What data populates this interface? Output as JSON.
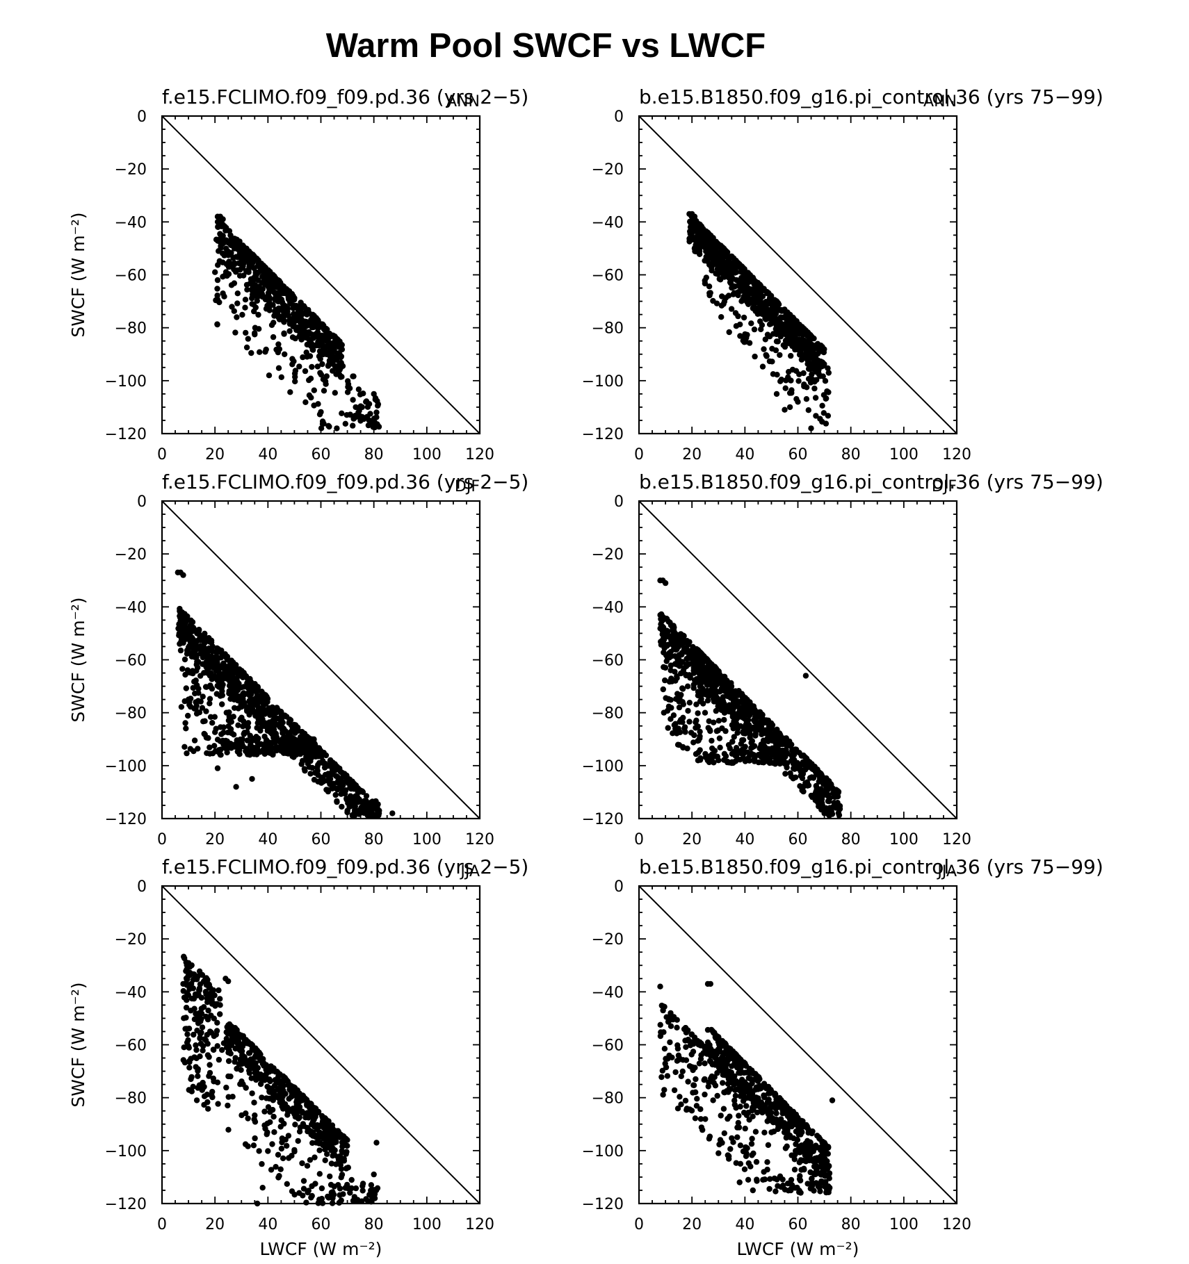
{
  "page": {
    "title": "Warm Pool SWCF vs LWCF"
  },
  "chart_data": [
    {
      "type": "scatter",
      "title": "f.e15.FCLIMO.f09_f09.pd.36 (yrs 2−5)",
      "season": "ANN",
      "xlabel": "",
      "ylabel": "SWCF (W m⁻²)",
      "xlim": [
        0,
        120
      ],
      "ylim": [
        -120,
        0
      ],
      "xticks": [
        "0",
        "20",
        "40",
        "60",
        "80",
        "100",
        "120"
      ],
      "yticks": [
        "0",
        "−20",
        "−40",
        "−60",
        "−80",
        "−100",
        "−120"
      ],
      "reference_line": "y = −x",
      "generator": {
        "seed": 11,
        "count": 750,
        "groups": [
          {
            "w": 0.7,
            "x0": 21,
            "x1": 68,
            "lo": 0,
            "hi": 14,
            "yMin": -118
          },
          {
            "w": 0.3,
            "x0": 20,
            "x1": 82,
            "lo": 8,
            "hi": 40,
            "yMin": -118
          }
        ]
      },
      "extra_points": [
        [
          21,
          -38
        ],
        [
          22,
          -38
        ],
        [
          23,
          -39
        ],
        [
          20,
          -59
        ],
        [
          21,
          -62
        ],
        [
          23,
          -67
        ],
        [
          80,
          -105
        ],
        [
          81,
          -112
        ],
        [
          77,
          -108
        ],
        [
          66,
          -118
        ],
        [
          72,
          -117
        ]
      ]
    },
    {
      "type": "scatter",
      "title": "b.e15.B1850.f09_g16.pi_control.36 (yrs 75−99)",
      "season": "ANN",
      "xlabel": "",
      "ylabel": "",
      "xlim": [
        0,
        120
      ],
      "ylim": [
        -120,
        0
      ],
      "xticks": [
        "0",
        "20",
        "40",
        "60",
        "80",
        "100",
        "120"
      ],
      "yticks": [
        "0",
        "−20",
        "−40",
        "−60",
        "−80",
        "−100",
        "−120"
      ],
      "reference_line": "y = −x",
      "generator": {
        "seed": 23,
        "count": 900,
        "groups": [
          {
            "w": 0.78,
            "x0": 19,
            "x1": 70,
            "lo": 0,
            "hi": 12,
            "yMin": -110
          },
          {
            "w": 0.22,
            "x0": 24,
            "x1": 72,
            "lo": 6,
            "hi": 30,
            "yMin": -118
          }
        ]
      },
      "extra_points": [
        [
          19,
          -37
        ],
        [
          20,
          -37
        ],
        [
          21,
          -38
        ],
        [
          55,
          -111
        ],
        [
          57,
          -110
        ],
        [
          60,
          -108
        ],
        [
          65,
          -118
        ],
        [
          69,
          -93
        ],
        [
          71,
          -104
        ],
        [
          52,
          -105
        ]
      ]
    },
    {
      "type": "scatter",
      "title": "f.e15.FCLIMO.f09_f09.pd.36 (yrs 2−5)",
      "season": "DJF",
      "xlabel": "",
      "ylabel": "SWCF (W m⁻²)",
      "xlim": [
        0,
        120
      ],
      "ylim": [
        -120,
        0
      ],
      "xticks": [
        "0",
        "20",
        "40",
        "60",
        "80",
        "100",
        "120"
      ],
      "yticks": [
        "0",
        "−20",
        "−40",
        "−60",
        "−80",
        "−100",
        "−120"
      ],
      "reference_line": "y = −x",
      "generator": {
        "seed": 37,
        "count": 1100,
        "groups": [
          {
            "w": 0.62,
            "x0": 6,
            "x1": 82,
            "lo": 16,
            "hi": 30,
            "yMin": -119
          },
          {
            "w": 0.38,
            "x0": 7,
            "x1": 58,
            "lo": 22,
            "hi": 70,
            "yMin": -96
          }
        ]
      },
      "extra_points": [
        [
          6,
          -27
        ],
        [
          7,
          -27
        ],
        [
          8,
          -28
        ],
        [
          10,
          -75
        ],
        [
          21,
          -101
        ],
        [
          28,
          -108
        ],
        [
          34,
          -105
        ],
        [
          87,
          -118
        ],
        [
          82,
          -117
        ],
        [
          79,
          -119
        ],
        [
          72,
          -119
        ]
      ]
    },
    {
      "type": "scatter",
      "title": "b.e15.B1850.f09_g16.pi_control.36 (yrs 75−99)",
      "season": "DJF",
      "xlabel": "",
      "ylabel": "",
      "xlim": [
        0,
        120
      ],
      "ylim": [
        -120,
        0
      ],
      "xticks": [
        "0",
        "20",
        "40",
        "60",
        "80",
        "100",
        "120"
      ],
      "yticks": [
        "0",
        "−20",
        "−40",
        "−60",
        "−80",
        "−100",
        "−120"
      ],
      "reference_line": "y = −x",
      "generator": {
        "seed": 41,
        "count": 1000,
        "groups": [
          {
            "w": 0.66,
            "x0": 8,
            "x1": 76,
            "lo": 16,
            "hi": 30,
            "yMin": -119
          },
          {
            "w": 0.34,
            "x0": 9,
            "x1": 55,
            "lo": 20,
            "hi": 60,
            "yMin": -99
          }
        ]
      },
      "extra_points": [
        [
          8,
          -30
        ],
        [
          9,
          -30
        ],
        [
          10,
          -31
        ],
        [
          12,
          -64
        ],
        [
          30,
          -98
        ],
        [
          35,
          -99
        ],
        [
          70,
          -118
        ],
        [
          72,
          -117
        ],
        [
          75,
          -114
        ],
        [
          63,
          -66
        ]
      ]
    },
    {
      "type": "scatter",
      "title": "f.e15.FCLIMO.f09_f09.pd.36 (yrs 2−5)",
      "season": "JJA",
      "xlabel": "LWCF (W m⁻²)",
      "ylabel": "SWCF (W m⁻²)",
      "xlim": [
        0,
        120
      ],
      "ylim": [
        -120,
        0
      ],
      "xticks": [
        "0",
        "20",
        "40",
        "60",
        "80",
        "100",
        "120"
      ],
      "yticks": [
        "0",
        "−20",
        "−40",
        "−60",
        "−80",
        "−100",
        "−120"
      ],
      "reference_line": "y = −x",
      "generator": {
        "seed": 53,
        "count": 800,
        "groups": [
          {
            "w": 0.55,
            "x0": 24,
            "x1": 70,
            "lo": 8,
            "hi": 20,
            "yMin": -110
          },
          {
            "w": 0.22,
            "x0": 8,
            "x1": 22,
            "lo": 0,
            "hi": 50,
            "yMin": -90
          },
          {
            "w": 0.23,
            "x0": 22,
            "x1": 82,
            "lo": 18,
            "hi": 50,
            "yMin": -120
          }
        ]
      },
      "extra_points": [
        [
          24,
          -35
        ],
        [
          25,
          -36
        ],
        [
          8,
          -37
        ],
        [
          17,
          -36
        ],
        [
          36,
          -120
        ],
        [
          38,
          -114
        ],
        [
          80,
          -109
        ],
        [
          79,
          -113
        ],
        [
          81,
          -97
        ]
      ]
    },
    {
      "type": "scatter",
      "title": "b.e15.B1850.f09_g16.pi_control.36 (yrs 75−99)",
      "season": "JJA",
      "xlabel": "LWCF (W m⁻²)",
      "ylabel": "",
      "xlim": [
        0,
        120
      ],
      "ylim": [
        -120,
        0
      ],
      "xticks": [
        "0",
        "20",
        "40",
        "60",
        "80",
        "100",
        "120"
      ],
      "yticks": [
        "0",
        "−20",
        "−40",
        "−60",
        "−80",
        "−100",
        "−120"
      ],
      "reference_line": "y = −x",
      "generator": {
        "seed": 67,
        "count": 750,
        "groups": [
          {
            "w": 0.55,
            "x0": 26,
            "x1": 72,
            "lo": 9,
            "hi": 22,
            "yMin": -114
          },
          {
            "w": 0.45,
            "x0": 8,
            "x1": 72,
            "lo": 18,
            "hi": 52,
            "yMin": -116
          }
        ]
      },
      "extra_points": [
        [
          26,
          -37
        ],
        [
          27,
          -37
        ],
        [
          8,
          -38
        ],
        [
          43,
          -115
        ],
        [
          38,
          -112
        ],
        [
          72,
          -114
        ],
        [
          71,
          -104
        ],
        [
          30,
          -101
        ],
        [
          73,
          -81
        ]
      ]
    }
  ]
}
